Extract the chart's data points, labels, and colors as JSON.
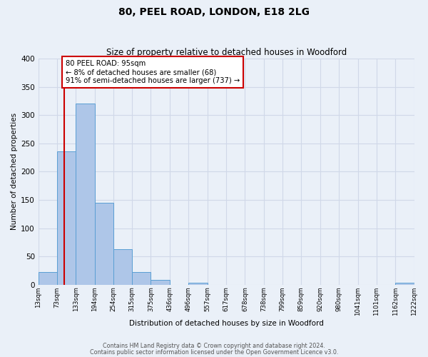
{
  "title": "80, PEEL ROAD, LONDON, E18 2LG",
  "subtitle": "Size of property relative to detached houses in Woodford",
  "xlabel": "Distribution of detached houses by size in Woodford",
  "ylabel": "Number of detached properties",
  "bin_edges": [
    13,
    73,
    133,
    194,
    254,
    315,
    375,
    436,
    496,
    557,
    617,
    678,
    738,
    799,
    859,
    920,
    980,
    1041,
    1101,
    1162,
    1222
  ],
  "bar_heights": [
    22,
    236,
    320,
    145,
    63,
    22,
    8,
    0,
    3,
    0,
    0,
    0,
    0,
    0,
    0,
    0,
    0,
    0,
    0,
    3
  ],
  "bar_color": "#aec6e8",
  "bar_edge_color": "#5a9fd4",
  "ylim": [
    0,
    400
  ],
  "yticks": [
    0,
    50,
    100,
    150,
    200,
    250,
    300,
    350,
    400
  ],
  "vline_x": 95,
  "vline_color": "#cc0000",
  "annotation_text": "80 PEEL ROAD: 95sqm\n← 8% of detached houses are smaller (68)\n91% of semi-detached houses are larger (737) →",
  "annotation_box_color": "#ffffff",
  "annotation_border_color": "#cc0000",
  "grid_color": "#d0d8e8",
  "bg_color": "#eaf0f8",
  "footer1": "Contains HM Land Registry data © Crown copyright and database right 2024.",
  "footer2": "Contains public sector information licensed under the Open Government Licence v3.0."
}
